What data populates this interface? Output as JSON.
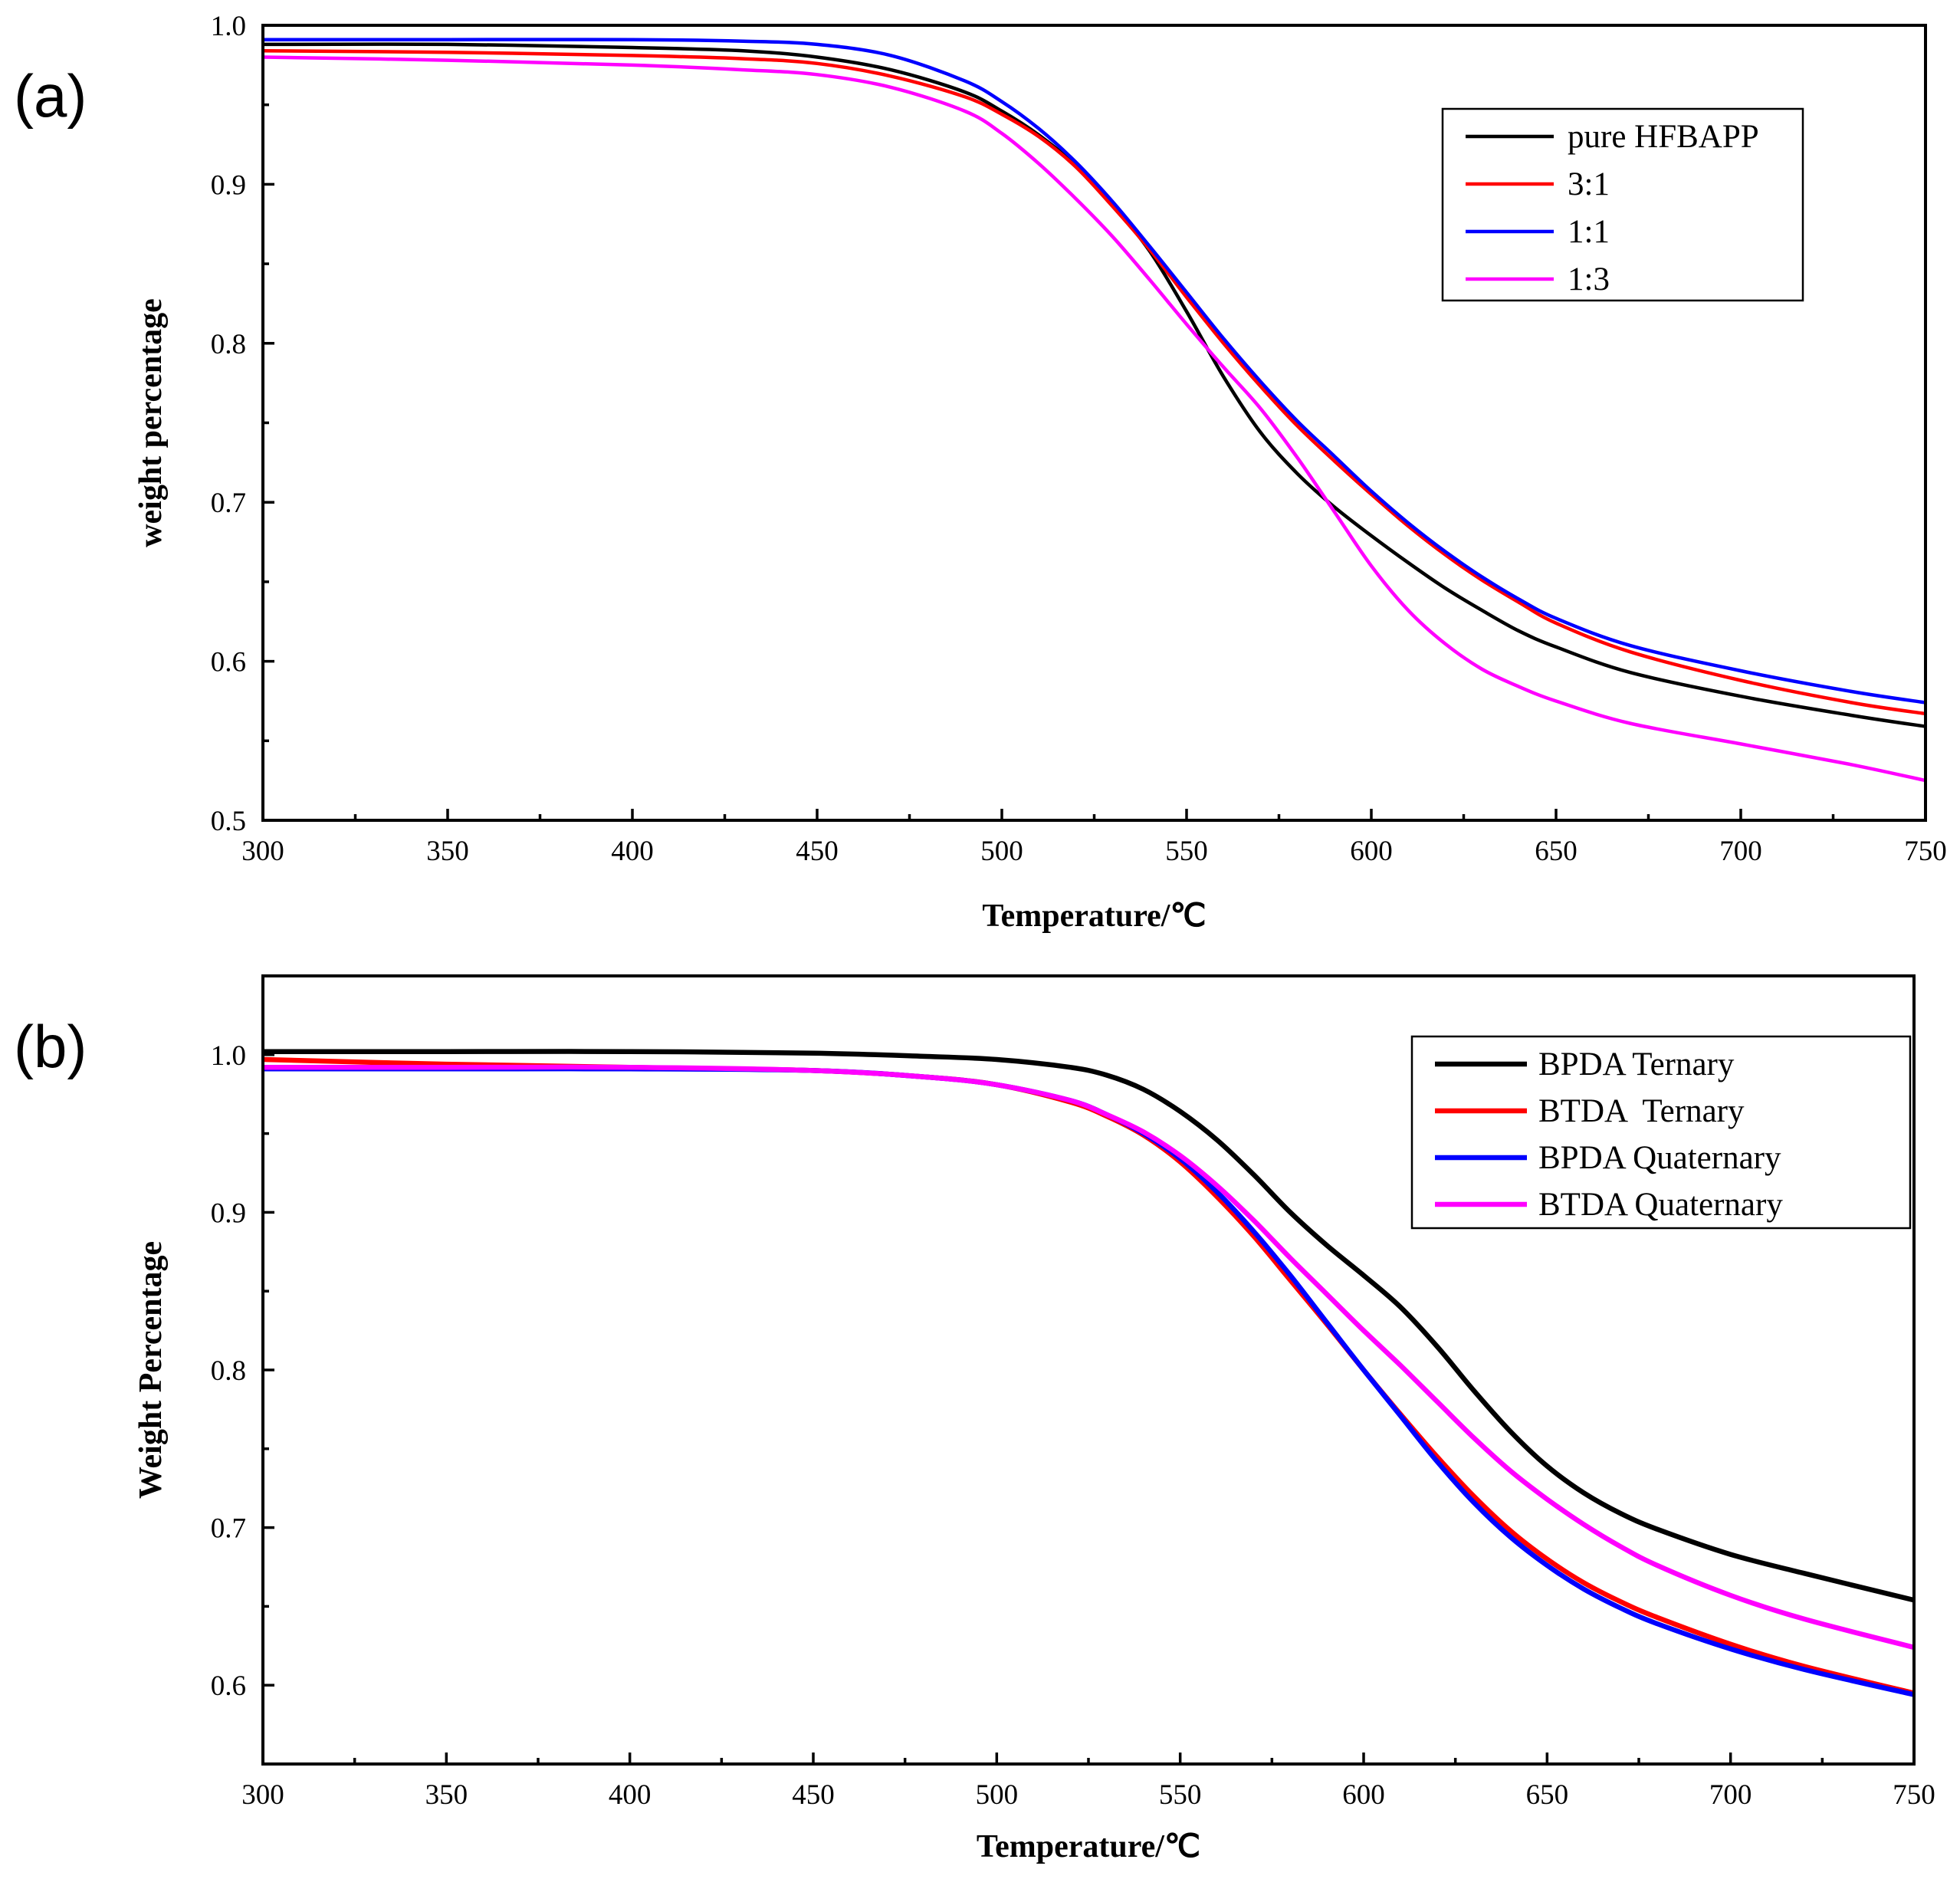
{
  "chart_data": [
    {
      "type": "line",
      "panel_label": "(a)",
      "title": "",
      "xlabel": "Temperature/℃",
      "ylabel": "weight percentage",
      "xlim": [
        300,
        750
      ],
      "ylim": [
        0.5,
        1.0
      ],
      "x_major_ticks": [
        300,
        350,
        400,
        450,
        500,
        550,
        600,
        650,
        700,
        750
      ],
      "x_minor_ticks": [
        325,
        375,
        425,
        475,
        525,
        575,
        625,
        675,
        725
      ],
      "y_major_ticks": [
        0.5,
        0.6,
        0.7,
        0.8,
        0.9,
        1.0
      ],
      "y_minor_ticks": [
        0.55,
        0.65,
        0.75,
        0.85,
        0.95
      ],
      "x_tick_labels": [
        "300",
        "350",
        "400",
        "450",
        "500",
        "550",
        "600",
        "650",
        "700",
        "750"
      ],
      "y_tick_labels": [
        "0.5",
        "0.6",
        "0.7",
        "0.8",
        "0.9",
        "1.0"
      ],
      "grid": false,
      "legend_position": "top-right",
      "x": [
        300,
        350,
        400,
        430,
        450,
        470,
        490,
        500,
        510,
        520,
        530,
        540,
        550,
        560,
        570,
        580,
        590,
        600,
        610,
        620,
        630,
        640,
        650,
        670,
        700,
        730,
        750
      ],
      "series": [
        {
          "name": "pure HFBAPP",
          "color": "#000000",
          "values": [
            0.988,
            0.988,
            0.986,
            0.984,
            0.98,
            0.972,
            0.958,
            0.946,
            0.931,
            0.912,
            0.887,
            0.858,
            0.82,
            0.779,
            0.744,
            0.718,
            0.697,
            0.679,
            0.662,
            0.646,
            0.632,
            0.619,
            0.609,
            0.593,
            0.578,
            0.566,
            0.559
          ]
        },
        {
          "name": "3:1",
          "color": "#ff0000",
          "values": [
            0.984,
            0.983,
            0.981,
            0.979,
            0.976,
            0.968,
            0.955,
            0.944,
            0.93,
            0.911,
            0.886,
            0.859,
            0.829,
            0.8,
            0.773,
            0.748,
            0.726,
            0.705,
            0.685,
            0.667,
            0.651,
            0.637,
            0.624,
            0.606,
            0.588,
            0.574,
            0.567
          ]
        },
        {
          "name": "1:1",
          "color": "#0000ff",
          "values": [
            0.991,
            0.991,
            0.991,
            0.99,
            0.988,
            0.981,
            0.965,
            0.952,
            0.935,
            0.914,
            0.889,
            0.861,
            0.832,
            0.803,
            0.776,
            0.751,
            0.729,
            0.707,
            0.687,
            0.669,
            0.653,
            0.639,
            0.627,
            0.61,
            0.594,
            0.581,
            0.574
          ]
        },
        {
          "name": "1:3",
          "color": "#ff00ff",
          "values": [
            0.98,
            0.978,
            0.975,
            0.972,
            0.969,
            0.961,
            0.946,
            0.932,
            0.913,
            0.891,
            0.867,
            0.84,
            0.812,
            0.785,
            0.759,
            0.728,
            0.694,
            0.66,
            0.632,
            0.611,
            0.595,
            0.584,
            0.575,
            0.561,
            0.548,
            0.535,
            0.525
          ]
        }
      ]
    },
    {
      "type": "line",
      "panel_label": "(b)",
      "title": "",
      "xlabel": "Temperature/℃",
      "ylabel": "Weight Percentage",
      "xlim": [
        300,
        750
      ],
      "ylim": [
        0.55,
        1.05
      ],
      "x_major_ticks": [
        300,
        350,
        400,
        450,
        500,
        550,
        600,
        650,
        700,
        750
      ],
      "x_minor_ticks": [
        325,
        375,
        425,
        475,
        525,
        575,
        625,
        675,
        725
      ],
      "y_major_ticks": [
        0.6,
        0.7,
        0.8,
        0.9,
        1.0
      ],
      "y_minor_ticks": [
        0.55,
        0.65,
        0.75,
        0.85,
        0.95,
        1.05
      ],
      "x_tick_labels": [
        "300",
        "350",
        "400",
        "450",
        "500",
        "550",
        "600",
        "650",
        "700",
        "750"
      ],
      "y_tick_labels": [
        "0.6",
        "0.7",
        "0.8",
        "0.9",
        "1.0"
      ],
      "grid": false,
      "legend_position": "top-right",
      "x": [
        300,
        350,
        400,
        450,
        480,
        500,
        520,
        530,
        540,
        550,
        560,
        570,
        580,
        590,
        600,
        610,
        620,
        630,
        640,
        650,
        660,
        670,
        680,
        700,
        720,
        750
      ],
      "series": [
        {
          "name": "BPDA Ternary",
          "color": "#000000",
          "values": [
            1.002,
            1.002,
            1.002,
            1.001,
            0.999,
            0.997,
            0.992,
            0.987,
            0.978,
            0.964,
            0.946,
            0.924,
            0.9,
            0.879,
            0.86,
            0.84,
            0.815,
            0.787,
            0.761,
            0.739,
            0.722,
            0.709,
            0.699,
            0.683,
            0.671,
            0.654
          ]
        },
        {
          "name": "BTDA  Ternary",
          "color": "#ff0000",
          "values": [
            0.997,
            0.994,
            0.992,
            0.99,
            0.986,
            0.981,
            0.97,
            0.961,
            0.949,
            0.932,
            0.91,
            0.885,
            0.857,
            0.829,
            0.8,
            0.772,
            0.745,
            0.72,
            0.698,
            0.68,
            0.665,
            0.653,
            0.643,
            0.626,
            0.612,
            0.595
          ]
        },
        {
          "name": "BPDA Quaternary",
          "color": "#0000ff",
          "values": [
            0.991,
            0.991,
            0.991,
            0.99,
            0.986,
            0.981,
            0.971,
            0.962,
            0.95,
            0.934,
            0.913,
            0.888,
            0.86,
            0.83,
            0.8,
            0.771,
            0.742,
            0.716,
            0.694,
            0.676,
            0.661,
            0.649,
            0.639,
            0.623,
            0.61,
            0.594
          ]
        },
        {
          "name": "BTDA Quaternary",
          "color": "#ff00ff",
          "values": [
            0.992,
            0.992,
            0.992,
            0.99,
            0.986,
            0.981,
            0.971,
            0.962,
            0.951,
            0.936,
            0.917,
            0.895,
            0.871,
            0.848,
            0.825,
            0.803,
            0.78,
            0.757,
            0.736,
            0.718,
            0.702,
            0.688,
            0.676,
            0.657,
            0.642,
            0.624
          ]
        }
      ]
    }
  ]
}
